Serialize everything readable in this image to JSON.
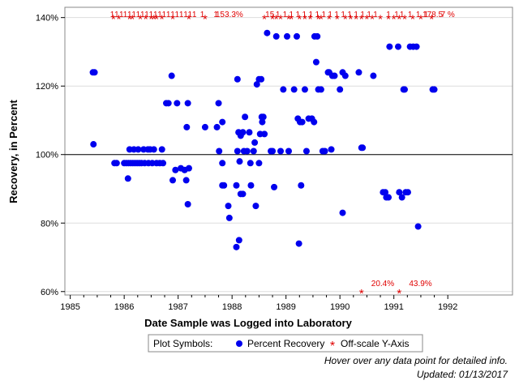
{
  "chart_data": {
    "type": "scatter",
    "xlabel": "Date Sample was Logged into Laboratory",
    "ylabel": "Recovery, in Percent",
    "xlim": [
      1984.9,
      1993.2
    ],
    "ylim": [
      59,
      143
    ],
    "x_ticks": [
      1985,
      1986,
      1987,
      1988,
      1989,
      1990,
      1991,
      1992
    ],
    "y_ticks": [
      60,
      80,
      100,
      120,
      140
    ],
    "y_tick_labels": [
      "60%",
      "80%",
      "100%",
      "120%",
      "140%"
    ],
    "reference_line": 100,
    "grid": "horizontal",
    "series": [
      {
        "name": "Percent Recovery",
        "color": "#0000ee",
        "points": [
          [
            1985.42,
            124
          ],
          [
            1985.45,
            124
          ],
          [
            1985.43,
            103
          ],
          [
            1985.82,
            97.5
          ],
          [
            1985.86,
            97.5
          ],
          [
            1986.0,
            97.5
          ],
          [
            1986.04,
            97.5
          ],
          [
            1986.08,
            97.5
          ],
          [
            1986.12,
            97.5
          ],
          [
            1986.16,
            97.5
          ],
          [
            1986.2,
            97.5
          ],
          [
            1986.24,
            97.5
          ],
          [
            1986.28,
            97.5
          ],
          [
            1986.32,
            97.5
          ],
          [
            1986.38,
            97.5
          ],
          [
            1986.45,
            97.5
          ],
          [
            1986.52,
            97.5
          ],
          [
            1986.6,
            97.5
          ],
          [
            1986.66,
            97.5
          ],
          [
            1986.72,
            97.5
          ],
          [
            1986.1,
            101.5
          ],
          [
            1986.18,
            101.5
          ],
          [
            1986.26,
            101.5
          ],
          [
            1986.36,
            101.5
          ],
          [
            1986.44,
            101.5
          ],
          [
            1986.48,
            101.5
          ],
          [
            1986.55,
            101.5
          ],
          [
            1986.7,
            101.5
          ],
          [
            1986.07,
            93
          ],
          [
            1986.78,
            115
          ],
          [
            1986.82,
            115
          ],
          [
            1986.98,
            115
          ],
          [
            1987.18,
            115
          ],
          [
            1986.88,
            123
          ],
          [
            1986.9,
            92.5
          ],
          [
            1986.95,
            95.5
          ],
          [
            1987.05,
            96
          ],
          [
            1987.12,
            95.5
          ],
          [
            1987.2,
            96
          ],
          [
            1987.15,
            92.5
          ],
          [
            1987.16,
            108
          ],
          [
            1987.18,
            85.5
          ],
          [
            1987.5,
            108
          ],
          [
            1987.72,
            108
          ],
          [
            1987.75,
            115
          ],
          [
            1987.76,
            101
          ],
          [
            1987.82,
            109.5
          ],
          [
            1987.82,
            97.5
          ],
          [
            1987.82,
            91
          ],
          [
            1987.85,
            91
          ],
          [
            1987.93,
            85
          ],
          [
            1987.95,
            81.5
          ],
          [
            1988.08,
            91
          ],
          [
            1988.1,
            122
          ],
          [
            1988.1,
            101
          ],
          [
            1988.12,
            106.5
          ],
          [
            1988.14,
            98
          ],
          [
            1988.16,
            105.5
          ],
          [
            1988.16,
            88.5
          ],
          [
            1988.2,
            88.5
          ],
          [
            1988.13,
            75
          ],
          [
            1988.08,
            73
          ],
          [
            1988.2,
            106.5
          ],
          [
            1988.22,
            101
          ],
          [
            1988.24,
            111
          ],
          [
            1988.28,
            101
          ],
          [
            1988.32,
            106.5
          ],
          [
            1988.34,
            97.5
          ],
          [
            1988.35,
            91
          ],
          [
            1988.4,
            101
          ],
          [
            1988.42,
            103.5
          ],
          [
            1988.44,
            85
          ],
          [
            1988.46,
            120.5
          ],
          [
            1988.5,
            122
          ],
          [
            1988.52,
            106
          ],
          [
            1988.54,
            122
          ],
          [
            1988.55,
            111
          ],
          [
            1988.56,
            109.5
          ],
          [
            1988.58,
            111
          ],
          [
            1988.6,
            106
          ],
          [
            1988.5,
            97.5
          ],
          [
            1988.65,
            135.5
          ],
          [
            1988.72,
            101
          ],
          [
            1988.75,
            101
          ],
          [
            1988.78,
            90.5
          ],
          [
            1988.82,
            134.5
          ],
          [
            1988.9,
            101
          ],
          [
            1988.95,
            119
          ],
          [
            1989.02,
            134.5
          ],
          [
            1989.05,
            101
          ],
          [
            1989.15,
            119
          ],
          [
            1989.2,
            134.5
          ],
          [
            1989.22,
            110.5
          ],
          [
            1989.24,
            74
          ],
          [
            1989.26,
            109.5
          ],
          [
            1989.28,
            91
          ],
          [
            1989.3,
            109.5
          ],
          [
            1989.35,
            119
          ],
          [
            1989.38,
            101
          ],
          [
            1989.42,
            110.5
          ],
          [
            1989.48,
            110.5
          ],
          [
            1989.52,
            109.5
          ],
          [
            1989.53,
            134.5
          ],
          [
            1989.56,
            127
          ],
          [
            1989.58,
            134.5
          ],
          [
            1989.6,
            119
          ],
          [
            1989.65,
            119
          ],
          [
            1989.68,
            101
          ],
          [
            1989.72,
            101
          ],
          [
            1989.78,
            124
          ],
          [
            1989.8,
            124
          ],
          [
            1989.84,
            101.5
          ],
          [
            1989.86,
            123
          ],
          [
            1989.9,
            123
          ],
          [
            1990.0,
            119
          ],
          [
            1990.05,
            124
          ],
          [
            1990.05,
            83
          ],
          [
            1990.1,
            123
          ],
          [
            1990.35,
            124
          ],
          [
            1990.4,
            102
          ],
          [
            1990.42,
            102
          ],
          [
            1990.62,
            123
          ],
          [
            1990.8,
            89
          ],
          [
            1990.84,
            89
          ],
          [
            1990.86,
            87.5
          ],
          [
            1990.9,
            87.5
          ],
          [
            1990.92,
            131.5
          ],
          [
            1991.08,
            131.5
          ],
          [
            1991.1,
            89
          ],
          [
            1991.15,
            87.5
          ],
          [
            1991.18,
            119
          ],
          [
            1991.2,
            119
          ],
          [
            1991.22,
            89
          ],
          [
            1991.26,
            89
          ],
          [
            1991.3,
            131.5
          ],
          [
            1991.36,
            131.5
          ],
          [
            1991.42,
            131.5
          ],
          [
            1991.45,
            79
          ],
          [
            1991.72,
            119
          ],
          [
            1991.75,
            119
          ]
        ]
      },
      {
        "name": "Off-scale Y-Axis",
        "color": "#e00000",
        "marker": "*",
        "top_points": [
          1985.8,
          1985.9,
          1986.1,
          1986.15,
          1986.3,
          1986.4,
          1986.5,
          1986.55,
          1986.6,
          1986.7,
          1986.9,
          1987.2,
          1987.5,
          1988.6,
          1988.75,
          1988.82,
          1988.9,
          1989.05,
          1989.1,
          1989.25,
          1989.35,
          1989.45,
          1989.6,
          1989.65,
          1989.8,
          1989.95,
          1990.1,
          1990.2,
          1990.3,
          1990.4,
          1990.5,
          1990.6,
          1990.75,
          1990.9,
          1991.0,
          1991.1,
          1991.2,
          1991.35,
          1991.5,
          1991.7
        ],
        "bottom_points": [
          {
            "x": 1990.4,
            "label": "20.4%"
          },
          {
            "x": 1991.1,
            "label": "43.9%"
          }
        ]
      }
    ],
    "top_labels": [
      {
        "x": 1985.78,
        "text": "1"
      },
      {
        "x": 1985.86,
        "text": "1"
      },
      {
        "x": 1985.95,
        "text": "1"
      },
      {
        "x": 1986.02,
        "text": "1"
      },
      {
        "x": 1986.1,
        "text": "1"
      },
      {
        "x": 1986.18,
        "text": "1"
      },
      {
        "x": 1986.26,
        "text": "1"
      },
      {
        "x": 1986.34,
        "text": "1"
      },
      {
        "x": 1986.42,
        "text": "1"
      },
      {
        "x": 1986.5,
        "text": "1"
      },
      {
        "x": 1986.58,
        "text": "1"
      },
      {
        "x": 1986.66,
        "text": "1"
      },
      {
        "x": 1986.74,
        "text": "1"
      },
      {
        "x": 1986.82,
        "text": "1"
      },
      {
        "x": 1986.9,
        "text": "1"
      },
      {
        "x": 1986.98,
        "text": "1"
      },
      {
        "x": 1987.06,
        "text": "1"
      },
      {
        "x": 1987.14,
        "text": "1"
      },
      {
        "x": 1987.22,
        "text": "1"
      },
      {
        "x": 1987.3,
        "text": "1"
      },
      {
        "x": 1987.45,
        "text": "1"
      },
      {
        "x": 1987.7,
        "text": "1"
      },
      {
        "x": 1987.95,
        "text": "153.3%"
      },
      {
        "x": 1988.7,
        "text": "15"
      },
      {
        "x": 1988.85,
        "text": "1"
      },
      {
        "x": 1988.98,
        "text": "1"
      },
      {
        "x": 1989.1,
        "text": "1"
      },
      {
        "x": 1989.22,
        "text": "1"
      },
      {
        "x": 1989.34,
        "text": "1"
      },
      {
        "x": 1989.46,
        "text": "1"
      },
      {
        "x": 1989.58,
        "text": "1"
      },
      {
        "x": 1989.7,
        "text": "1"
      },
      {
        "x": 1989.82,
        "text": "1"
      },
      {
        "x": 1989.94,
        "text": "1"
      },
      {
        "x": 1990.06,
        "text": "1"
      },
      {
        "x": 1990.18,
        "text": "1"
      },
      {
        "x": 1990.3,
        "text": "1"
      },
      {
        "x": 1990.42,
        "text": "1"
      },
      {
        "x": 1990.54,
        "text": "1"
      },
      {
        "x": 1990.66,
        "text": "1"
      },
      {
        "x": 1990.9,
        "text": "1"
      },
      {
        "x": 1991.05,
        "text": "1"
      },
      {
        "x": 1991.15,
        "text": "1"
      },
      {
        "x": 1991.3,
        "text": "1"
      },
      {
        "x": 1991.45,
        "text": "1"
      },
      {
        "x": 1991.6,
        "text": "1"
      },
      {
        "x": 1991.72,
        "text": "178.5"
      },
      {
        "x": 1992.0,
        "text": "7 %"
      }
    ]
  },
  "legend": {
    "title": "Plot Symbols:",
    "items": [
      {
        "label": "Percent Recovery",
        "color": "#0000ee"
      },
      {
        "label": "Off-scale Y-Axis",
        "color": "#e00000"
      }
    ]
  },
  "footnotes": {
    "hover": "Hover over any data point for detailed info.",
    "updated": "Updated: 01/13/2017"
  }
}
